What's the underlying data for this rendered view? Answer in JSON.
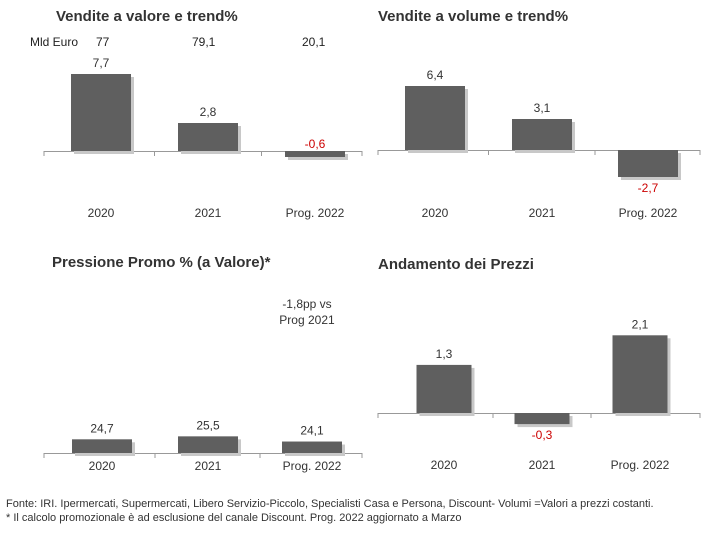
{
  "colors": {
    "bar": "#5f5f5f",
    "negative_label": "#cc0000",
    "label": "#333333",
    "axis": "#999999"
  },
  "chart_data": [
    {
      "type": "bar",
      "title": "Vendite a valore e trend%",
      "categories": [
        "2020",
        "2021",
        "Prog. 2022"
      ],
      "values": [
        7.7,
        2.8,
        -0.6
      ],
      "value_labels": [
        "7,7",
        "2,8",
        "-0,6"
      ],
      "top_row_label": "Mld Euro",
      "top_row_values": [
        "77",
        "79,1",
        "20,1"
      ]
    },
    {
      "type": "bar",
      "title": "Vendite a volume e trend%",
      "categories": [
        "2020",
        "2021",
        "Prog. 2022"
      ],
      "values": [
        6.4,
        3.1,
        -2.7
      ],
      "value_labels": [
        "6,4",
        "3,1",
        "-2,7"
      ]
    },
    {
      "type": "bar",
      "title": "Pressione Promo % (a Valore)*",
      "categories": [
        "2020",
        "2021",
        "Prog. 2022"
      ],
      "values": [
        24.7,
        25.5,
        24.1
      ],
      "value_labels": [
        "24,7",
        "25,5",
        "24,1"
      ],
      "annotation": [
        "-1,8pp vs",
        "Prog 2021"
      ]
    },
    {
      "type": "bar",
      "title": "Andamento dei Prezzi",
      "categories": [
        "2020",
        "2021",
        "Prog. 2022"
      ],
      "values": [
        1.3,
        -0.3,
        2.1
      ],
      "value_labels": [
        "1,3",
        "-0,3",
        "2,1"
      ]
    }
  ],
  "footer": {
    "line1": "Fonte: IRI. Ipermercati, Supermercati, Libero Servizio-Piccolo, Specialisti Casa e Persona, Discount-  Volumi =Valori a prezzi costanti.",
    "line2": "* Il calcolo promozionale è ad esclusione del canale Discount. Prog. 2022 aggiornato a Marzo"
  }
}
